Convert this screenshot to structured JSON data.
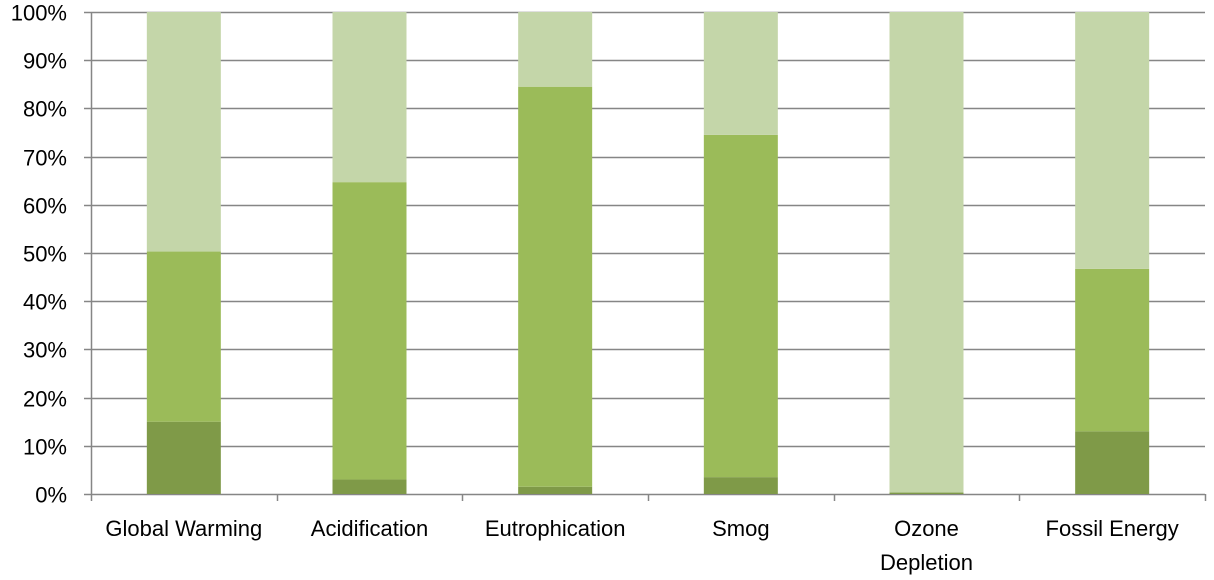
{
  "chart_data": {
    "type": "bar",
    "stacked": true,
    "categories": [
      [
        "Global Warming"
      ],
      [
        "Acidification"
      ],
      [
        "Eutrophication"
      ],
      [
        "Smog"
      ],
      [
        "Ozone",
        "Depletion"
      ],
      [
        "Fossil Energy"
      ]
    ],
    "series": [
      {
        "values": [
          15,
          3,
          1.5,
          3.5,
          0.3,
          13
        ],
        "color": "#7f9a48"
      },
      {
        "values": [
          35.3,
          61.7,
          83,
          71,
          0,
          33.7
        ],
        "color": "#9bbb59"
      },
      {
        "values": [
          49.7,
          35.3,
          15.5,
          25.5,
          99.7,
          53.3
        ],
        "color": "#c4d6a9"
      }
    ],
    "ylim": [
      0,
      100
    ],
    "yticks": [
      0,
      10,
      20,
      30,
      40,
      50,
      60,
      70,
      80,
      90,
      100
    ],
    "ytick_labels": [
      "0%",
      "10%",
      "20%",
      "30%",
      "40%",
      "50%",
      "60%",
      "70%",
      "80%",
      "90%",
      "100%"
    ],
    "grid": true,
    "gridline_color": "#868686",
    "axis_color": "#868686",
    "title": "",
    "xlabel": "",
    "ylabel": ""
  }
}
